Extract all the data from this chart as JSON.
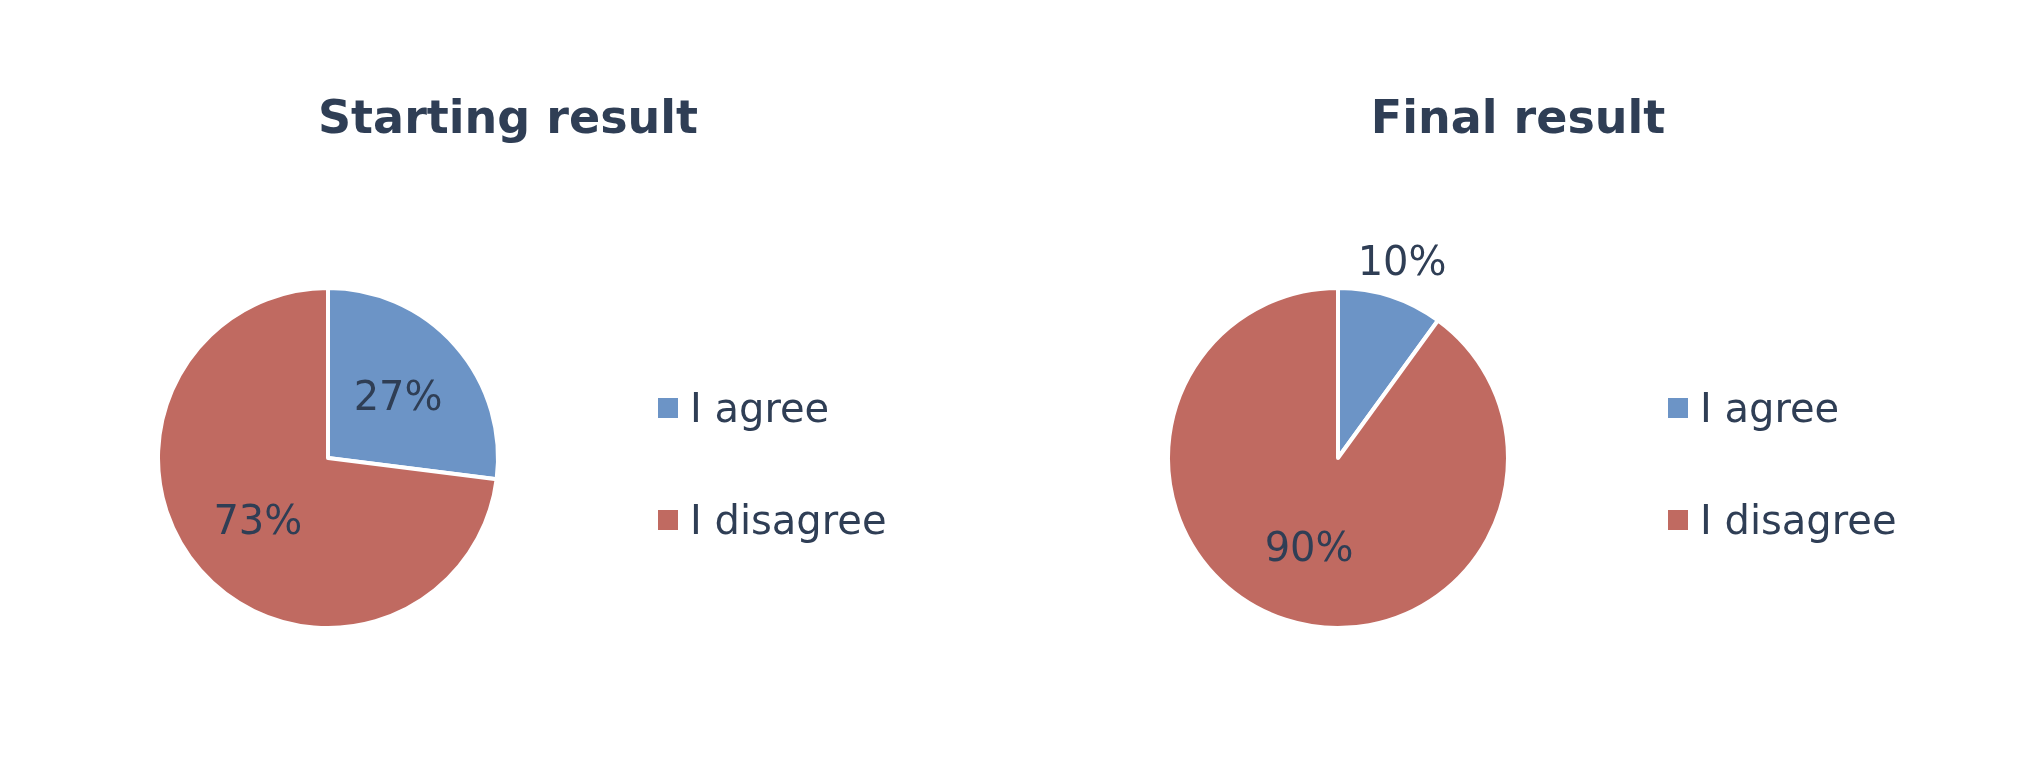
{
  "chart_data": [
    {
      "type": "pie",
      "title": "Starting result",
      "categories": [
        "I agree",
        "I disagree"
      ],
      "values": [
        27,
        73
      ],
      "value_labels": [
        "27%",
        "73%"
      ],
      "colors": [
        "#6c94c6",
        "#c06a61"
      ],
      "legend": "right"
    },
    {
      "type": "pie",
      "title": "Final result",
      "categories": [
        "I agree",
        "I disagree"
      ],
      "values": [
        10,
        90
      ],
      "value_labels": [
        "10%",
        "90%"
      ],
      "colors": [
        "#6c94c6",
        "#c06a61"
      ],
      "legend": "right"
    }
  ]
}
